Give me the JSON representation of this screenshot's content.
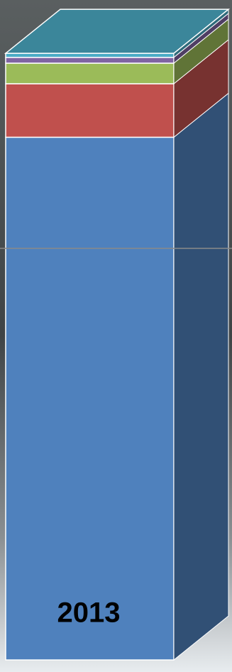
{
  "chart_data": {
    "type": "stacked-bar-3d",
    "categories": [
      "2013"
    ],
    "series": [
      {
        "color": "#4f81bd",
        "values": [
          127
        ]
      },
      {
        "color": "#c0504d",
        "values": [
          13
        ]
      },
      {
        "color": "#9bbb59",
        "values": [
          5
        ]
      },
      {
        "color": "#8064a2",
        "values": [
          1.4
        ]
      },
      {
        "color": "#4bacc6",
        "values": [
          1
        ]
      }
    ],
    "ylim": [
      0,
      150
    ],
    "yticks": [
      0,
      100
    ],
    "grid": true
  }
}
